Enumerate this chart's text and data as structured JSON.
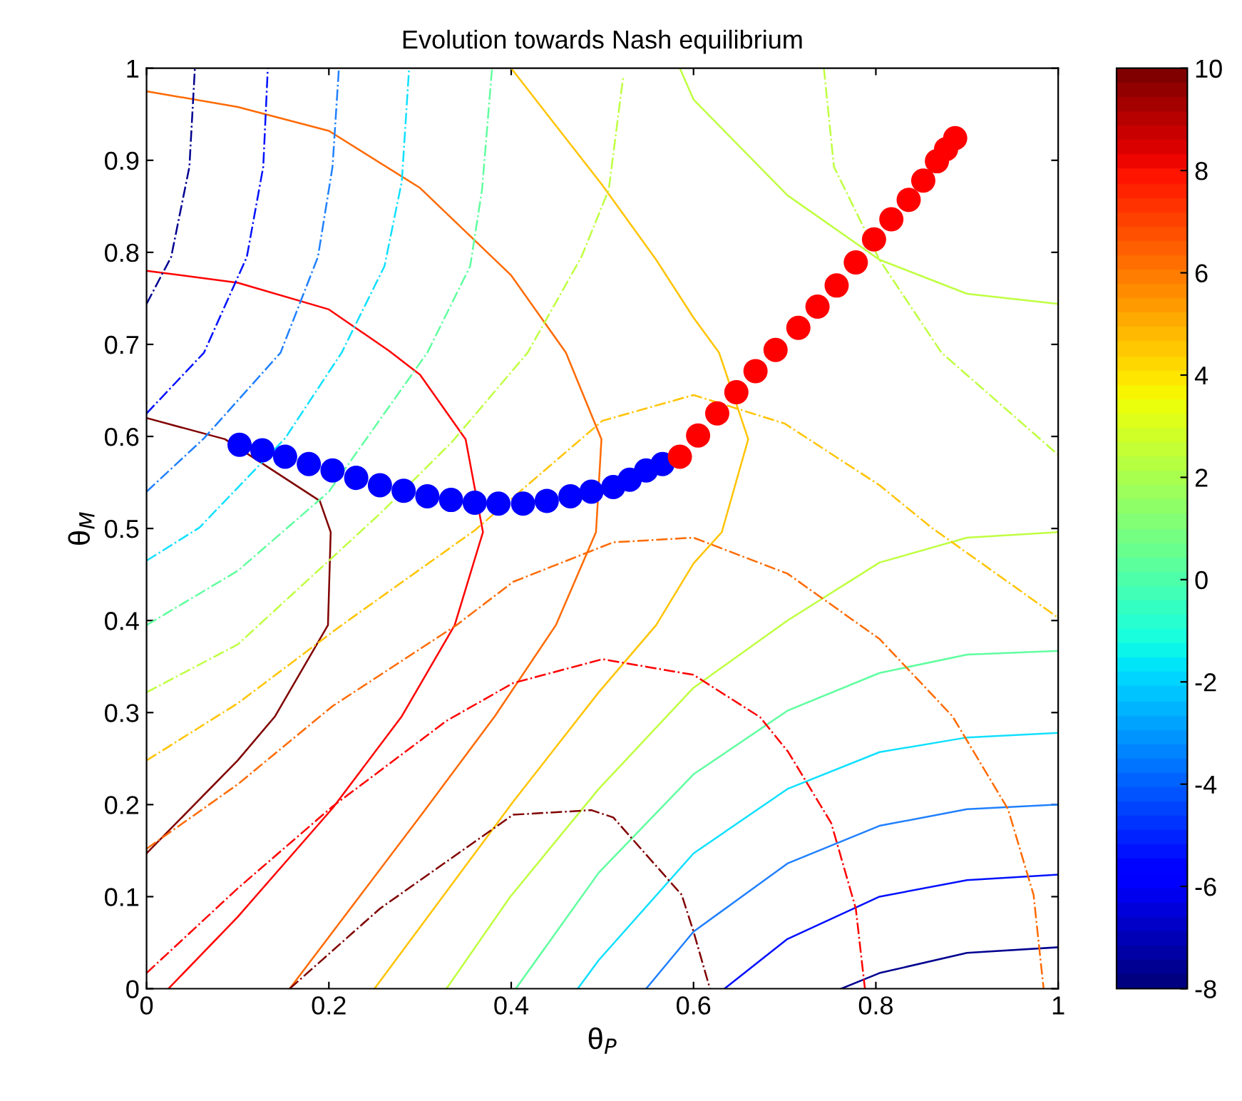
{
  "chart_data": {
    "type": "line",
    "title": "Evolution towards Nash equilibrium",
    "xlabel": "θ$_{P}$",
    "ylabel": "θ$_{M}$",
    "xlim": [
      0,
      1
    ],
    "ylim": [
      0,
      1
    ],
    "xticks": [
      0,
      0.2,
      0.4,
      0.6,
      0.8,
      1
    ],
    "yticks": [
      0,
      0.1,
      0.2,
      0.3,
      0.4,
      0.5,
      0.6,
      0.7,
      0.8,
      0.9,
      1
    ],
    "clim": [
      -8,
      10
    ],
    "cticks": [
      -8,
      -6,
      -4,
      -2,
      0,
      2,
      4,
      6,
      8,
      10
    ],
    "grid": false,
    "legend": false,
    "series": [
      {
        "color": "#800000",
        "line_style": "solid",
        "x": [
          0,
          0.086,
          0.19,
          0.202,
          0.199,
          0.141,
          0.1,
          0
        ],
        "values": [
          0.62,
          0.597,
          0.53,
          0.496,
          0.395,
          0.296,
          0.248,
          0.147
        ]
      },
      {
        "color": "#ff0000",
        "line_style": "solid",
        "x": [
          0,
          0.1,
          0.2,
          0.266,
          0.3,
          0.35,
          0.369,
          0.338,
          0.28,
          0.204,
          0.1,
          0.024
        ],
        "values": [
          0.78,
          0.767,
          0.738,
          0.693,
          0.667,
          0.597,
          0.496,
          0.395,
          0.296,
          0.196,
          0.078,
          0
        ]
      },
      {
        "color": "#ff6a00",
        "line_style": "solid",
        "x": [
          0,
          0.1,
          0.2,
          0.3,
          0.4,
          0.46,
          0.499,
          0.493,
          0.449,
          0.382,
          0.303,
          0.157
        ],
        "values": [
          0.975,
          0.958,
          0.932,
          0.87,
          0.775,
          0.691,
          0.597,
          0.496,
          0.395,
          0.296,
          0.191,
          0
        ]
      },
      {
        "color": "#ffc400",
        "line_style": "solid",
        "x": [
          0.4,
          0.5,
          0.559,
          0.6,
          0.628,
          0.66,
          0.631,
          0.6,
          0.559,
          0.496,
          0.402,
          0.25
        ],
        "values": [
          1,
          0.873,
          0.792,
          0.729,
          0.691,
          0.597,
          0.496,
          0.462,
          0.395,
          0.322,
          0.203,
          0
        ]
      },
      {
        "color": "#bfff40",
        "line_style": "solid",
        "x": [
          0.585,
          0.6,
          0.703,
          0.804,
          0.9,
          1
        ],
        "values": [
          1,
          0.966,
          0.862,
          0.792,
          0.755,
          0.744
        ]
      },
      {
        "color": "#bfff40",
        "line_style": "solid",
        "x": [
          1,
          0.9,
          0.804,
          0.703,
          0.6,
          0.496,
          0.399,
          0.329
        ],
        "values": [
          0.496,
          0.49,
          0.463,
          0.4,
          0.327,
          0.217,
          0.1,
          0
        ]
      },
      {
        "color": "#60ffa0",
        "line_style": "solid",
        "x": [
          1,
          0.9,
          0.804,
          0.703,
          0.6,
          0.496,
          0.405
        ],
        "values": [
          0.367,
          0.363,
          0.343,
          0.302,
          0.233,
          0.126,
          0
        ]
      },
      {
        "color": "#10e0ff",
        "line_style": "solid",
        "x": [
          1,
          0.9,
          0.804,
          0.703,
          0.6,
          0.496,
          0.473
        ],
        "values": [
          0.278,
          0.273,
          0.257,
          0.217,
          0.147,
          0.031,
          0
        ]
      },
      {
        "color": "#2080ff",
        "line_style": "solid",
        "x": [
          1,
          0.9,
          0.804,
          0.703,
          0.6,
          0.548
        ],
        "values": [
          0.2,
          0.195,
          0.177,
          0.136,
          0.062,
          0
        ]
      },
      {
        "color": "#0010ff",
        "line_style": "solid",
        "x": [
          1,
          0.9,
          0.804,
          0.703,
          0.634
        ],
        "values": [
          0.124,
          0.118,
          0.1,
          0.054,
          0
        ]
      },
      {
        "color": "#000090",
        "line_style": "solid",
        "x": [
          1,
          0.9,
          0.804,
          0.762
        ],
        "values": [
          0.045,
          0.039,
          0.017,
          0
        ]
      },
      {
        "color": "#800000",
        "line_style": "dashdot",
        "x": [
          0.157,
          0.256,
          0.402,
          0.488,
          0.512,
          0.587,
          0.6,
          0.618
        ],
        "values": [
          0,
          0.087,
          0.189,
          0.194,
          0.186,
          0.102,
          0.062,
          0
        ]
      },
      {
        "color": "#ff0000",
        "line_style": "dashdot",
        "x": [
          0,
          0.1,
          0.204,
          0.329,
          0.402,
          0.5,
          0.6,
          0.673,
          0.704,
          0.751,
          0.778,
          0.788
        ],
        "values": [
          0.017,
          0.109,
          0.198,
          0.291,
          0.332,
          0.358,
          0.341,
          0.295,
          0.257,
          0.18,
          0.087,
          0
        ]
      },
      {
        "color": "#ff6a00",
        "line_style": "dashdot",
        "x": [
          0,
          0.1,
          0.204,
          0.34,
          0.402,
          0.512,
          0.6,
          0.703,
          0.804,
          0.884,
          0.945,
          0.973,
          0.984
        ],
        "values": [
          0.152,
          0.222,
          0.307,
          0.395,
          0.442,
          0.485,
          0.49,
          0.451,
          0.38,
          0.296,
          0.195,
          0.102,
          0
        ]
      },
      {
        "color": "#ffc400",
        "line_style": "dashdot",
        "x": [
          0,
          0.1,
          0.214,
          0.36,
          0.5,
          0.6,
          0.7,
          0.804,
          0.861,
          1
        ],
        "values": [
          0.248,
          0.31,
          0.395,
          0.498,
          0.617,
          0.645,
          0.614,
          0.547,
          0.501,
          0.403
        ]
      },
      {
        "color": "#bfff40",
        "line_style": "dashdot",
        "x": [
          0,
          0.1,
          0.256,
          0.335,
          0.418,
          0.477,
          0.507,
          0.523
        ],
        "values": [
          0.322,
          0.374,
          0.516,
          0.594,
          0.691,
          0.795,
          0.868,
          0.992
        ]
      },
      {
        "color": "#bfff40",
        "line_style": "dashdot",
        "x": [
          0.743,
          0.754,
          0.804,
          0.872,
          1
        ],
        "values": [
          1,
          0.893,
          0.792,
          0.691,
          0.58
        ]
      },
      {
        "color": "#60ffa0",
        "line_style": "dashdot",
        "x": [
          0,
          0.1,
          0.2,
          0.308,
          0.355,
          0.368,
          0.379
        ],
        "values": [
          0.395,
          0.454,
          0.54,
          0.691,
          0.785,
          0.868,
          1
        ]
      },
      {
        "color": "#10e0ff",
        "line_style": "dashdot",
        "x": [
          0,
          0.058,
          0.152,
          0.214,
          0.261,
          0.28,
          0.288
        ],
        "values": [
          0.465,
          0.501,
          0.598,
          0.691,
          0.785,
          0.877,
          1
        ]
      },
      {
        "color": "#2080ff",
        "line_style": "dashdot",
        "x": [
          0,
          0.063,
          0.147,
          0.188,
          0.204,
          0.211
        ],
        "values": [
          0.54,
          0.598,
          0.691,
          0.795,
          0.893,
          1
        ]
      },
      {
        "color": "#0010ff",
        "line_style": "dashdot",
        "x": [
          0,
          0.063,
          0.11,
          0.128,
          0.133
        ],
        "values": [
          0.625,
          0.691,
          0.795,
          0.893,
          1
        ]
      },
      {
        "color": "#000090",
        "line_style": "dashdot",
        "x": [
          0,
          0.027,
          0.047,
          0.053
        ],
        "values": [
          0.744,
          0.795,
          0.893,
          1
        ]
      },
      {
        "type": "scatter",
        "color": "#0000ff",
        "marker": "circle",
        "x": [
          0.102,
          0.127,
          0.152,
          0.178,
          0.204,
          0.23,
          0.256,
          0.282,
          0.308,
          0.334,
          0.36,
          0.386,
          0.413,
          0.439,
          0.465,
          0.488,
          0.512,
          0.53,
          0.548,
          0.566
        ],
        "values": [
          0.591,
          0.585,
          0.578,
          0.57,
          0.563,
          0.555,
          0.547,
          0.541,
          0.535,
          0.531,
          0.528,
          0.527,
          0.527,
          0.53,
          0.535,
          0.54,
          0.545,
          0.553,
          0.563,
          0.57
        ]
      },
      {
        "type": "scatter",
        "color": "#ff0000",
        "marker": "circle",
        "x": [
          0.585,
          0.605,
          0.626,
          0.647,
          0.668,
          0.69,
          0.715,
          0.736,
          0.757,
          0.778,
          0.798,
          0.817,
          0.836,
          0.852,
          0.867,
          0.877,
          0.887
        ],
        "values": [
          0.578,
          0.601,
          0.625,
          0.648,
          0.671,
          0.694,
          0.718,
          0.741,
          0.764,
          0.789,
          0.814,
          0.836,
          0.857,
          0.878,
          0.899,
          0.912,
          0.924
        ]
      }
    ]
  }
}
